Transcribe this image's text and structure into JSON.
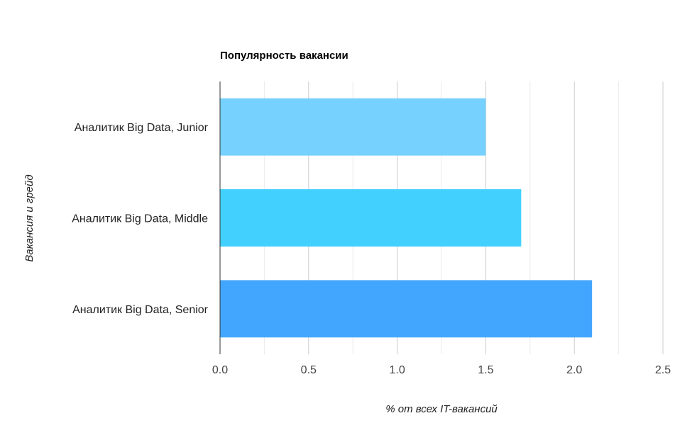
{
  "chart_data": {
    "type": "bar",
    "orientation": "horizontal",
    "title": "Популярность вакансии",
    "xlabel": "% от всех IT-вакансий",
    "ylabel": "Вакансия и грейд",
    "categories": [
      "Аналитик Big Data, Junior",
      "Аналитик Big Data, Middle",
      "Аналитик Big Data, Senior"
    ],
    "values": [
      1.5,
      1.7,
      2.1
    ],
    "colors": [
      "#77d1fe",
      "#42d1fe",
      "#43a6fe"
    ],
    "xlim": [
      0,
      2.5
    ],
    "xticks": [
      "0.0",
      "0.5",
      "1.0",
      "1.5",
      "2.0",
      "2.5"
    ],
    "grid": true,
    "legend": "none"
  }
}
